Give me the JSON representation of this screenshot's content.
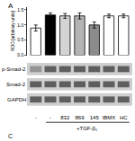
{
  "chart_data": {
    "type": "bar",
    "panel_labels": [
      "A",
      "C"
    ],
    "y_label": "ROD [arbitrary units]",
    "categories": [
      "-",
      "-",
      "832",
      "869",
      "145",
      "IBMX",
      "HC"
    ],
    "values": [
      0.9,
      1.33,
      1.3,
      1.3,
      1.0,
      1.3,
      1.3
    ],
    "errors": [
      0.1,
      0.07,
      0.08,
      0.1,
      0.1,
      0.06,
      0.06
    ],
    "colors": [
      "#ffffff",
      "#000000",
      "#d4d4d4",
      "#b4b4b4",
      "#8c8c8c",
      "#ffffff",
      "#ffffff"
    ],
    "ylim": [
      0,
      1.6
    ],
    "yticks": [
      {
        "value": 0,
        "label": "0.0"
      },
      {
        "value": 0.5,
        "label": "0.5"
      },
      {
        "value": 1,
        "label": "1.0"
      },
      {
        "value": 1.5,
        "label": "1.5"
      }
    ],
    "grid": false,
    "blot_rows": [
      "p-Smad-2",
      "Smad-2",
      "GAPDH"
    ],
    "treatment_label": "+TGF-β₁"
  }
}
